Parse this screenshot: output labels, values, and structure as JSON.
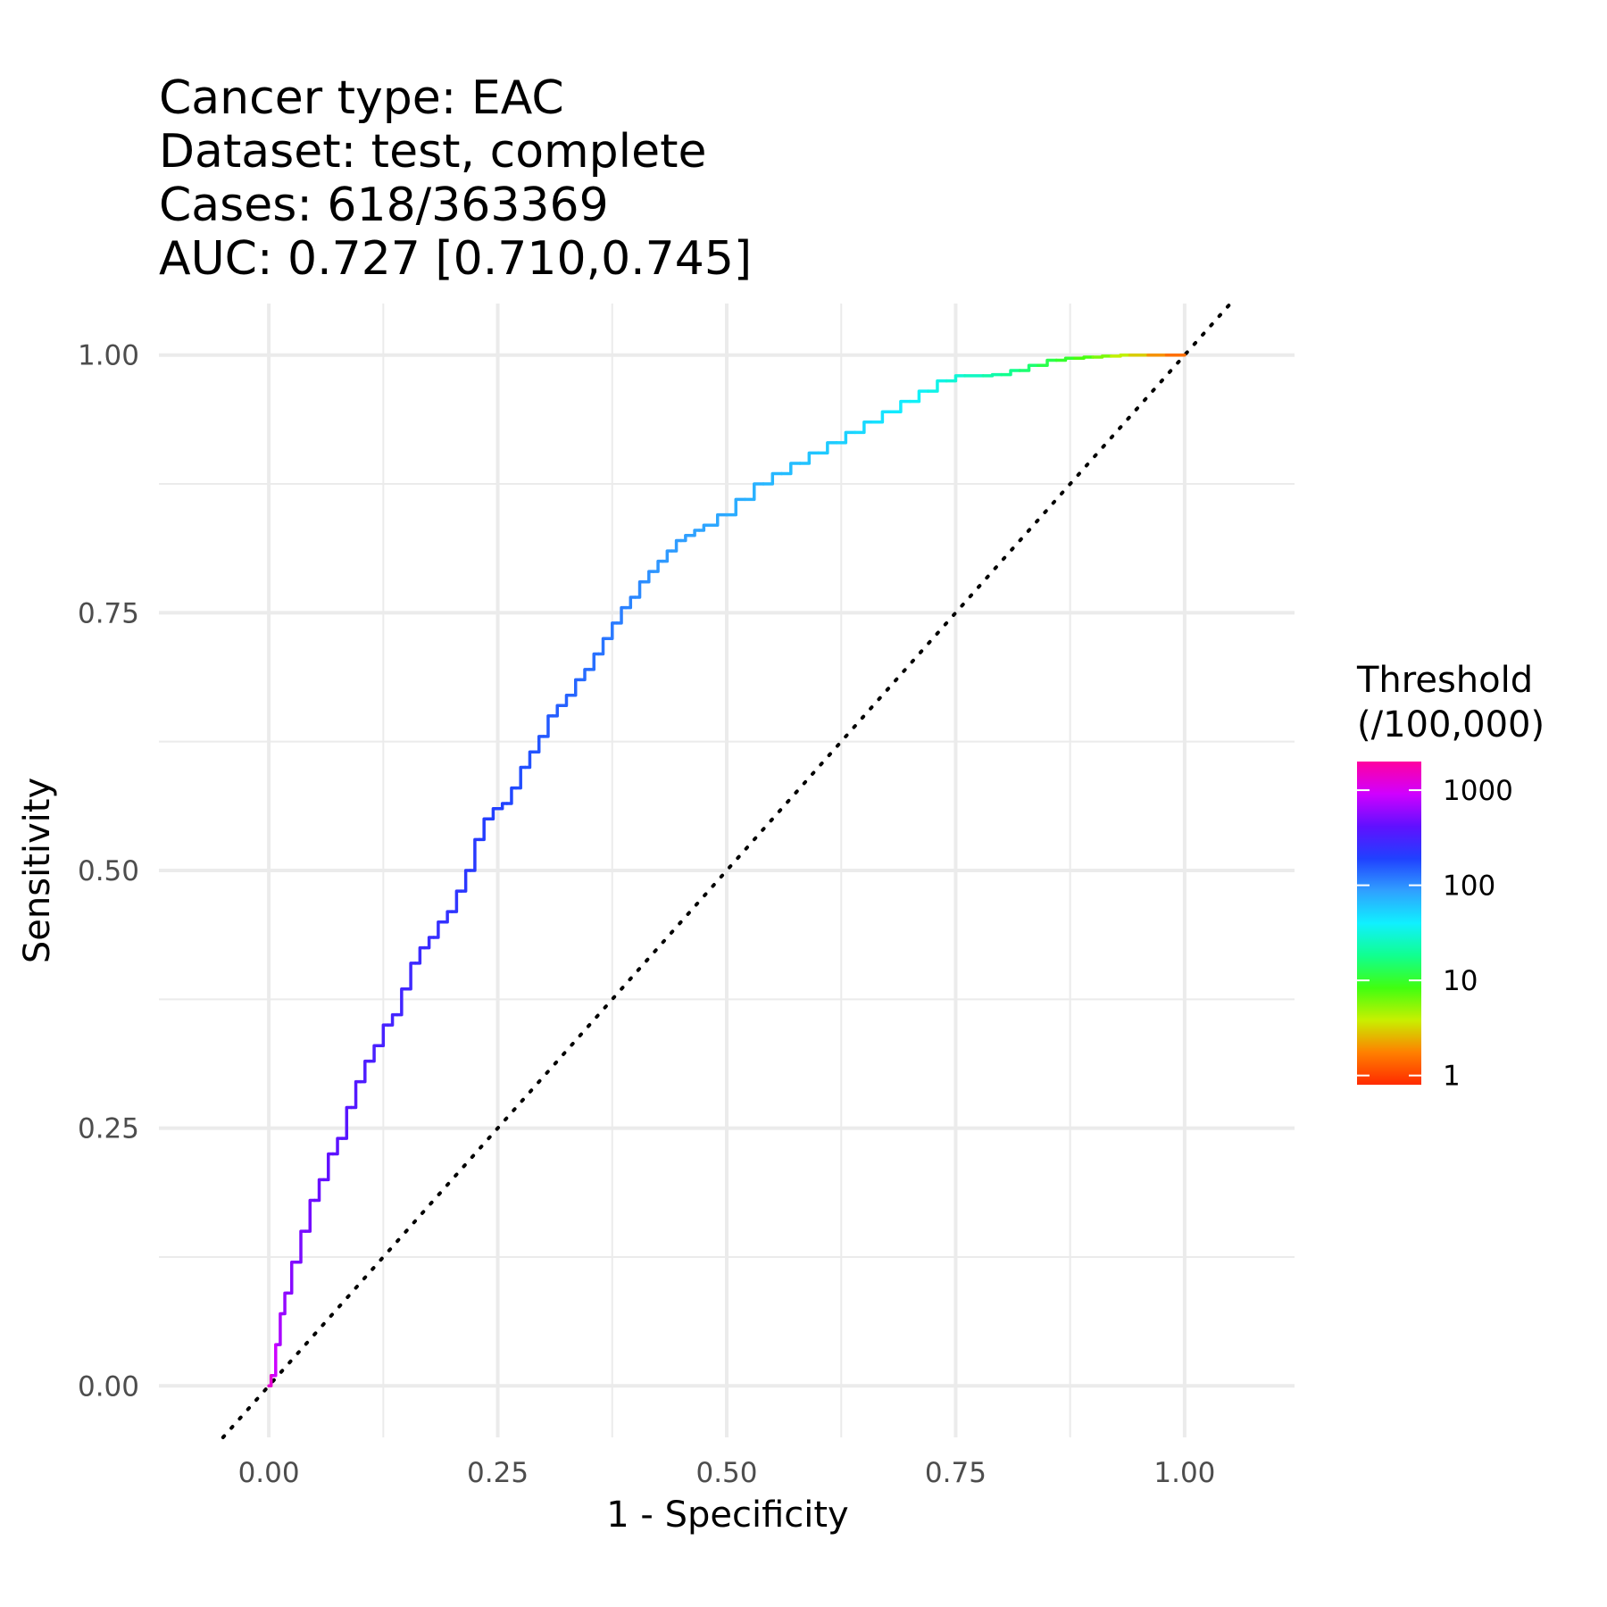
{
  "chart_data": {
    "type": "line",
    "title_lines": [
      "Cancer type: EAC",
      "Dataset: test, complete",
      "Cases: 618/363369",
      "AUC: 0.727 [0.710,0.745]"
    ],
    "xlabel": "1 - Specificity",
    "ylabel": "Sensitivity",
    "xlim": [
      -0.12,
      1.12
    ],
    "ylim": [
      -0.05,
      1.05
    ],
    "x_ticks": [
      0,
      0.25,
      0.5,
      0.75,
      1
    ],
    "x_tick_labels": [
      "0.00",
      "0.25",
      "0.50",
      "0.75",
      "1.00"
    ],
    "y_ticks": [
      0,
      0.25,
      0.5,
      0.75,
      1
    ],
    "y_tick_labels": [
      "0.00",
      "0.25",
      "0.50",
      "0.75",
      "1.00"
    ],
    "grid": true,
    "reference_line": {
      "style": "dotted",
      "color": "#000000",
      "x": [
        -0.05,
        1.05
      ],
      "y": [
        -0.05,
        1.05
      ]
    },
    "series": [
      {
        "x": [
          0,
          0.005,
          0.01,
          0.015,
          0.02,
          0.03,
          0.04,
          0.05,
          0.06,
          0.07,
          0.08,
          0.09,
          0.1,
          0.11,
          0.12,
          0.13,
          0.14,
          0.15,
          0.16,
          0.17,
          0.18,
          0.19,
          0.2,
          0.21,
          0.22,
          0.23,
          0.24,
          0.25,
          0.26,
          0.27,
          0.28,
          0.29,
          0.3,
          0.31,
          0.32,
          0.33,
          0.34,
          0.35,
          0.36,
          0.37,
          0.38,
          0.39,
          0.4,
          0.41,
          0.42,
          0.43,
          0.44,
          0.45,
          0.46,
          0.47,
          0.48,
          0.5,
          0.52,
          0.54,
          0.56,
          0.58,
          0.6,
          0.62,
          0.64,
          0.66,
          0.68,
          0.7,
          0.72,
          0.74,
          0.76,
          0.78,
          0.8,
          0.82,
          0.84,
          0.86,
          0.88,
          0.9,
          0.92,
          0.94,
          0.96,
          0.98,
          1.0
        ],
        "y": [
          0,
          0.01,
          0.04,
          0.07,
          0.09,
          0.12,
          0.15,
          0.18,
          0.2,
          0.225,
          0.24,
          0.27,
          0.295,
          0.315,
          0.33,
          0.35,
          0.36,
          0.385,
          0.41,
          0.425,
          0.435,
          0.45,
          0.46,
          0.48,
          0.5,
          0.53,
          0.55,
          0.56,
          0.565,
          0.58,
          0.6,
          0.615,
          0.63,
          0.65,
          0.66,
          0.67,
          0.685,
          0.695,
          0.71,
          0.725,
          0.74,
          0.755,
          0.765,
          0.78,
          0.79,
          0.8,
          0.81,
          0.82,
          0.825,
          0.83,
          0.835,
          0.845,
          0.86,
          0.875,
          0.885,
          0.895,
          0.905,
          0.915,
          0.925,
          0.935,
          0.945,
          0.955,
          0.965,
          0.975,
          0.98,
          0.98,
          0.981,
          0.985,
          0.99,
          0.995,
          0.997,
          0.998,
          0.999,
          1.0,
          1.0,
          1.0,
          1.0
        ],
        "threshold_per_100000": [
          1300,
          900,
          700,
          600,
          550,
          500,
          480,
          450,
          420,
          400,
          380,
          360,
          340,
          320,
          310,
          300,
          290,
          280,
          270,
          260,
          250,
          240,
          230,
          220,
          210,
          200,
          195,
          190,
          180,
          170,
          165,
          160,
          155,
          150,
          145,
          140,
          135,
          130,
          125,
          120,
          115,
          110,
          105,
          100,
          95,
          92,
          90,
          88,
          86,
          84,
          82,
          78,
          74,
          70,
          66,
          62,
          58,
          54,
          50,
          46,
          42,
          38,
          34,
          30,
          26,
          22,
          18,
          15,
          12,
          10,
          8,
          6,
          4,
          3,
          2,
          1.5,
          1
        ]
      }
    ],
    "colorbar": {
      "title_lines": [
        "Threshold",
        "(/100,000)"
      ],
      "scale": "log10",
      "range": [
        0.8,
        2000
      ],
      "ticks": [
        1,
        10,
        100,
        1000
      ],
      "tick_labels": [
        "1",
        "10",
        "100",
        "1000"
      ],
      "colors": [
        "#ff2a00",
        "#ff8000",
        "#c8f000",
        "#40ff10",
        "#10ff90",
        "#10f0ff",
        "#30a0ff",
        "#2040ff",
        "#6010ff",
        "#d000ff",
        "#ff00a0"
      ]
    }
  }
}
